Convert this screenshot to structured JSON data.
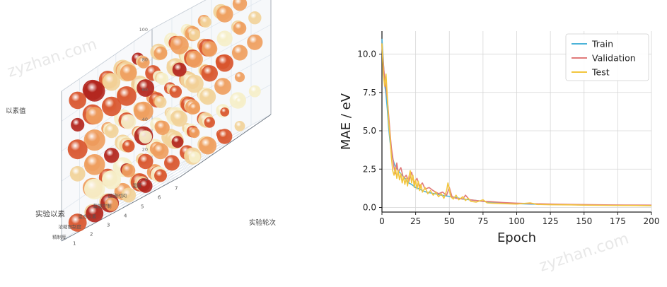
{
  "watermark": "zyzhan.com",
  "chart_data": [
    {
      "type": "scatter",
      "style": "3d-bubble",
      "zlabel": "以素值",
      "ylabel": "实验以素",
      "xlabel": "实验轮次",
      "z_ticks": [
        "0",
        "20",
        "40",
        "60",
        "80",
        "100"
      ],
      "x_ticks": [
        "1",
        "2",
        "3",
        "4",
        "5",
        "6",
        "7"
      ],
      "y_categories": [
        "温度",
        "回流时间",
        "载量控制",
        "混合以素",
        "浓缩限制度",
        "精制度"
      ],
      "colormap": [
        "#f6efc9",
        "#f2d39a",
        "#ef9f5f",
        "#d9552d",
        "#b3261e"
      ],
      "grid": true
    },
    {
      "type": "line",
      "xlabel": "Epoch",
      "ylabel": "MAE / eV",
      "xlim": [
        0,
        200
      ],
      "ylim": [
        -0.3,
        11.5
      ],
      "x_ticks": [
        0,
        25,
        50,
        75,
        100,
        125,
        150,
        175,
        200
      ],
      "y_ticks": [
        "0.0",
        "2.5",
        "5.0",
        "7.5",
        "10.0"
      ],
      "grid": true,
      "legend_position": "top-right",
      "series": [
        {
          "name": "Train",
          "color": "#4bb3d8",
          "points": [
            [
              0,
              11.0
            ],
            [
              1,
              9.6
            ],
            [
              2,
              8.0
            ],
            [
              3,
              7.4
            ],
            [
              4,
              6.4
            ],
            [
              5,
              5.2
            ],
            [
              6,
              4.3
            ],
            [
              7,
              3.6
            ],
            [
              8,
              3.2
            ],
            [
              9,
              2.9
            ],
            [
              10,
              2.7
            ],
            [
              12,
              2.4
            ],
            [
              14,
              2.2
            ],
            [
              16,
              2.0
            ],
            [
              18,
              1.8
            ],
            [
              20,
              1.6
            ],
            [
              22,
              1.5
            ],
            [
              25,
              1.3
            ],
            [
              28,
              1.2
            ],
            [
              30,
              1.1
            ],
            [
              33,
              1.0
            ],
            [
              36,
              0.95
            ],
            [
              40,
              0.88
            ],
            [
              44,
              0.8
            ],
            [
              48,
              0.75
            ],
            [
              50,
              0.72
            ],
            [
              55,
              0.65
            ],
            [
              60,
              0.55
            ],
            [
              65,
              0.5
            ],
            [
              70,
              0.45
            ],
            [
              75,
              0.4
            ],
            [
              80,
              0.35
            ],
            [
              90,
              0.3
            ],
            [
              100,
              0.25
            ],
            [
              110,
              0.22
            ],
            [
              125,
              0.2
            ],
            [
              140,
              0.18
            ],
            [
              150,
              0.16
            ],
            [
              165,
              0.15
            ],
            [
              180,
              0.14
            ],
            [
              200,
              0.12
            ]
          ]
        },
        {
          "name": "Validation",
          "color": "#e07a7a",
          "points": [
            [
              0,
              10.6
            ],
            [
              1,
              9.4
            ],
            [
              2,
              8.4
            ],
            [
              3,
              7.8
            ],
            [
              4,
              7.1
            ],
            [
              5,
              6.0
            ],
            [
              6,
              4.9
            ],
            [
              7,
              3.9
            ],
            [
              8,
              3.3
            ],
            [
              9,
              2.6
            ],
            [
              10,
              2.2
            ],
            [
              11,
              2.9
            ],
            [
              12,
              2.3
            ],
            [
              14,
              2.6
            ],
            [
              16,
              1.9
            ],
            [
              18,
              2.1
            ],
            [
              20,
              1.7
            ],
            [
              22,
              2.3
            ],
            [
              24,
              1.6
            ],
            [
              26,
              1.9
            ],
            [
              28,
              1.4
            ],
            [
              30,
              1.6
            ],
            [
              32,
              1.2
            ],
            [
              35,
              1.3
            ],
            [
              38,
              1.1
            ],
            [
              42,
              0.9
            ],
            [
              45,
              1.0
            ],
            [
              48,
              0.8
            ],
            [
              50,
              1.3
            ],
            [
              52,
              0.7
            ],
            [
              55,
              0.6
            ],
            [
              60,
              0.55
            ],
            [
              62,
              0.8
            ],
            [
              65,
              0.5
            ],
            [
              70,
              0.45
            ],
            [
              75,
              0.4
            ],
            [
              80,
              0.38
            ],
            [
              90,
              0.32
            ],
            [
              100,
              0.28
            ],
            [
              110,
              0.25
            ],
            [
              125,
              0.22
            ],
            [
              140,
              0.2
            ],
            [
              150,
              0.19
            ],
            [
              165,
              0.17
            ],
            [
              180,
              0.16
            ],
            [
              200,
              0.15
            ]
          ]
        },
        {
          "name": "Test",
          "color": "#f2c53d",
          "points": [
            [
              0,
              10.7
            ],
            [
              1,
              8.7
            ],
            [
              2,
              7.9
            ],
            [
              3,
              8.7
            ],
            [
              4,
              7.2
            ],
            [
              5,
              5.6
            ],
            [
              6,
              4.6
            ],
            [
              7,
              3.3
            ],
            [
              8,
              2.4
            ],
            [
              9,
              2.1
            ],
            [
              10,
              2.6
            ],
            [
              11,
              1.9
            ],
            [
              12,
              2.4
            ],
            [
              13,
              1.8
            ],
            [
              14,
              2.2
            ],
            [
              15,
              1.6
            ],
            [
              16,
              2.0
            ],
            [
              17,
              1.5
            ],
            [
              18,
              1.9
            ],
            [
              19,
              1.4
            ],
            [
              20,
              2.0
            ],
            [
              21,
              2.4
            ],
            [
              22,
              1.6
            ],
            [
              23,
              2.1
            ],
            [
              24,
              1.3
            ],
            [
              25,
              1.8
            ],
            [
              26,
              1.2
            ],
            [
              27,
              1.7
            ],
            [
              28,
              1.1
            ],
            [
              29,
              1.5
            ],
            [
              30,
              1.0
            ],
            [
              32,
              1.3
            ],
            [
              34,
              0.9
            ],
            [
              36,
              1.1
            ],
            [
              38,
              0.8
            ],
            [
              40,
              1.0
            ],
            [
              42,
              0.7
            ],
            [
              44,
              0.9
            ],
            [
              46,
              0.6
            ],
            [
              48,
              1.1
            ],
            [
              49,
              1.6
            ],
            [
              50,
              1.2
            ],
            [
              51,
              0.7
            ],
            [
              53,
              0.55
            ],
            [
              55,
              0.8
            ],
            [
              57,
              0.5
            ],
            [
              60,
              0.7
            ],
            [
              62,
              0.45
            ],
            [
              64,
              0.6
            ],
            [
              66,
              0.4
            ],
            [
              70,
              0.35
            ],
            [
              75,
              0.5
            ],
            [
              78,
              0.3
            ],
            [
              82,
              0.28
            ],
            [
              90,
              0.25
            ],
            [
              100,
              0.22
            ],
            [
              110,
              0.3
            ],
            [
              115,
              0.2
            ],
            [
              125,
              0.18
            ],
            [
              140,
              0.17
            ],
            [
              150,
              0.15
            ],
            [
              165,
              0.14
            ],
            [
              180,
              0.13
            ],
            [
              200,
              0.12
            ]
          ]
        }
      ]
    }
  ]
}
